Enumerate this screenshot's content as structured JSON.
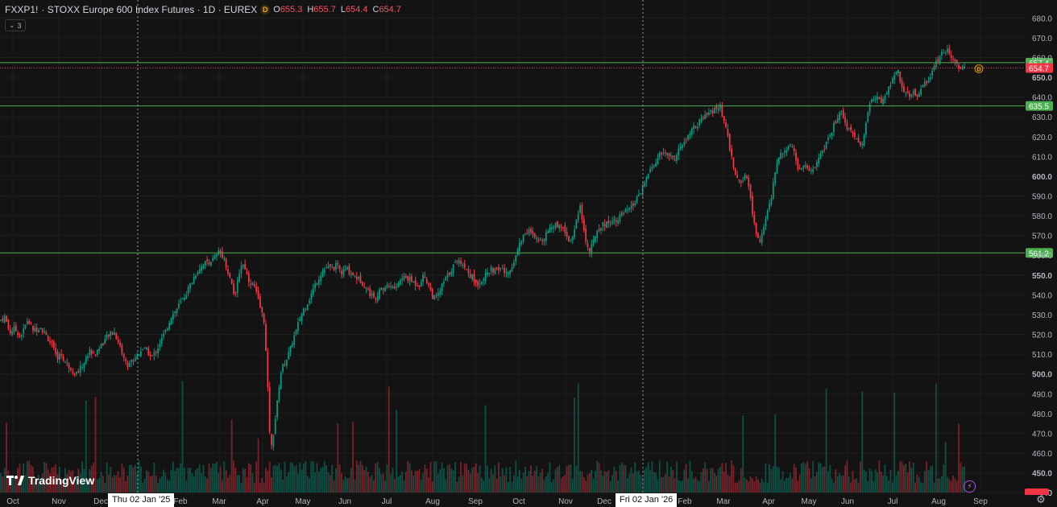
{
  "header": {
    "symbol": "FXXP1!",
    "name": "· STOXX Europe 600 Index Futures · 1D · EUREX",
    "badge": "D",
    "ohlc": {
      "o_label": "O",
      "o": "655.3",
      "h_label": "H",
      "h": "655.7",
      "l_label": "L",
      "l": "654.4",
      "c_label": "C",
      "c": "654.7"
    }
  },
  "indicator_toggle": {
    "count": "3"
  },
  "brand": {
    "name": "TradingView"
  },
  "crosshair_labels": [
    "Thu 02 Jan '25",
    "Fri 02 Jan '26"
  ],
  "colors": {
    "background": "#131313",
    "up": "#089981",
    "down": "#f23645",
    "level": "#4caf50",
    "grid": "#1e1e1e",
    "text": "#b2b5be"
  },
  "chart_data": {
    "type": "candlestick",
    "x_labels": [
      "Oct",
      "Nov",
      "Dec",
      "Feb",
      "Mar",
      "Apr",
      "May",
      "Jun",
      "Jul",
      "Aug",
      "Sep",
      "Oct",
      "Nov",
      "Dec",
      "Feb",
      "Mar",
      "Apr",
      "May",
      "Jun",
      "Jul",
      "Aug",
      "Sep"
    ],
    "y_ticks": [
      440,
      450,
      460,
      470,
      480,
      490,
      500,
      510,
      520,
      530,
      540,
      550,
      560,
      570,
      580,
      590,
      600,
      610,
      620,
      630,
      640,
      650,
      660,
      670,
      680
    ],
    "y_tick_labels": [
      "440",
      "450.0",
      "460.0",
      "470.0",
      "480.0",
      "490.0",
      "500.0",
      "510.0",
      "520.0",
      "530.0",
      "540.0",
      "550.0",
      "560.0",
      "570.0",
      "580.0",
      "590.0",
      "600.0",
      "610.0",
      "620.0",
      "630.0",
      "640.0",
      "650.0",
      "660.0",
      "670.0",
      "680.0"
    ],
    "ylim": [
      436,
      685
    ],
    "horizontal_levels": [
      {
        "value": 657.4,
        "label": "657.4"
      },
      {
        "value": 635.5,
        "label": "635.5"
      },
      {
        "value": 561.2,
        "label": "561.2"
      }
    ],
    "last_price": {
      "value": 654.7,
      "label": "654.7"
    },
    "close_path": [
      [
        0,
        527
      ],
      [
        6,
        529
      ],
      [
        12,
        521
      ],
      [
        18,
        523
      ],
      [
        26,
        519
      ],
      [
        34,
        527
      ],
      [
        42,
        522
      ],
      [
        50,
        524
      ],
      [
        58,
        519
      ],
      [
        64,
        515
      ],
      [
        70,
        508
      ],
      [
        76,
        510
      ],
      [
        82,
        505
      ],
      [
        88,
        503
      ],
      [
        94,
        500
      ],
      [
        100,
        503
      ],
      [
        106,
        507
      ],
      [
        112,
        512
      ],
      [
        118,
        510
      ],
      [
        124,
        514
      ],
      [
        130,
        517
      ],
      [
        136,
        520
      ],
      [
        142,
        521
      ],
      [
        148,
        515
      ],
      [
        154,
        508
      ],
      [
        158,
        504
      ],
      [
        164,
        507
      ],
      [
        170,
        509
      ],
      [
        176,
        513
      ],
      [
        182,
        512
      ],
      [
        188,
        508
      ],
      [
        194,
        512
      ],
      [
        200,
        517
      ],
      [
        206,
        522
      ],
      [
        212,
        529
      ],
      [
        218,
        532
      ],
      [
        224,
        536
      ],
      [
        230,
        540
      ],
      [
        236,
        545
      ],
      [
        242,
        550
      ],
      [
        248,
        554
      ],
      [
        254,
        556
      ],
      [
        260,
        557
      ],
      [
        266,
        558
      ],
      [
        272,
        562
      ],
      [
        276,
        560
      ],
      [
        280,
        556
      ],
      [
        284,
        550
      ],
      [
        288,
        545
      ],
      [
        292,
        538
      ],
      [
        296,
        550
      ],
      [
        300,
        556
      ],
      [
        304,
        554
      ],
      [
        308,
        548
      ],
      [
        312,
        546
      ],
      [
        316,
        544
      ],
      [
        320,
        538
      ],
      [
        324,
        532
      ],
      [
        328,
        527
      ],
      [
        332,
        495
      ],
      [
        336,
        460
      ],
      [
        340,
        472
      ],
      [
        344,
        485
      ],
      [
        348,
        500
      ],
      [
        352,
        505
      ],
      [
        356,
        508
      ],
      [
        360,
        512
      ],
      [
        364,
        518
      ],
      [
        368,
        522
      ],
      [
        372,
        528
      ],
      [
        376,
        532
      ],
      [
        380,
        535
      ],
      [
        384,
        538
      ],
      [
        388,
        542
      ],
      [
        392,
        546
      ],
      [
        396,
        549
      ],
      [
        400,
        552
      ],
      [
        406,
        554
      ],
      [
        412,
        553
      ],
      [
        418,
        555
      ],
      [
        424,
        551
      ],
      [
        430,
        553
      ],
      [
        436,
        551
      ],
      [
        442,
        549
      ],
      [
        448,
        547
      ],
      [
        454,
        544
      ],
      [
        460,
        540
      ],
      [
        466,
        539
      ],
      [
        472,
        542
      ],
      [
        478,
        544
      ],
      [
        484,
        545
      ],
      [
        490,
        543
      ],
      [
        496,
        547
      ],
      [
        502,
        549
      ],
      [
        508,
        548
      ],
      [
        514,
        546
      ],
      [
        520,
        545
      ],
      [
        526,
        550
      ],
      [
        532,
        545
      ],
      [
        538,
        538
      ],
      [
        544,
        540
      ],
      [
        550,
        546
      ],
      [
        556,
        550
      ],
      [
        562,
        554
      ],
      [
        568,
        558
      ],
      [
        574,
        556
      ],
      [
        580,
        552
      ],
      [
        586,
        549
      ],
      [
        592,
        545
      ],
      [
        598,
        548
      ],
      [
        604,
        550
      ],
      [
        610,
        553
      ],
      [
        616,
        552
      ],
      [
        622,
        554
      ],
      [
        628,
        550
      ],
      [
        634,
        553
      ],
      [
        640,
        560
      ],
      [
        646,
        567
      ],
      [
        652,
        572
      ],
      [
        658,
        572
      ],
      [
        664,
        568
      ],
      [
        670,
        567
      ],
      [
        676,
        570
      ],
      [
        682,
        574
      ],
      [
        688,
        575
      ],
      [
        694,
        576
      ],
      [
        700,
        573
      ],
      [
        706,
        568
      ],
      [
        712,
        570
      ],
      [
        716,
        580
      ],
      [
        720,
        585
      ],
      [
        724,
        575
      ],
      [
        728,
        565
      ],
      [
        732,
        562
      ],
      [
        736,
        566
      ],
      [
        740,
        572
      ],
      [
        746,
        575
      ],
      [
        752,
        576
      ],
      [
        758,
        577
      ],
      [
        764,
        578
      ],
      [
        770,
        580
      ],
      [
        776,
        582
      ],
      [
        782,
        583
      ],
      [
        788,
        587
      ],
      [
        794,
        590
      ],
      [
        800,
        597
      ],
      [
        806,
        602
      ],
      [
        812,
        606
      ],
      [
        818,
        610
      ],
      [
        824,
        612
      ],
      [
        830,
        611
      ],
      [
        836,
        608
      ],
      [
        842,
        613
      ],
      [
        848,
        616
      ],
      [
        854,
        620
      ],
      [
        860,
        624
      ],
      [
        866,
        626
      ],
      [
        872,
        629
      ],
      [
        878,
        631
      ],
      [
        884,
        633
      ],
      [
        890,
        634
      ],
      [
        894,
        635
      ],
      [
        898,
        628
      ],
      [
        902,
        622
      ],
      [
        906,
        614
      ],
      [
        910,
        605
      ],
      [
        914,
        600
      ],
      [
        918,
        596
      ],
      [
        922,
        598
      ],
      [
        926,
        600
      ],
      [
        930,
        594
      ],
      [
        934,
        580
      ],
      [
        938,
        572
      ],
      [
        942,
        567
      ],
      [
        946,
        570
      ],
      [
        950,
        578
      ],
      [
        954,
        585
      ],
      [
        958,
        590
      ],
      [
        962,
        603
      ],
      [
        966,
        608
      ],
      [
        970,
        612
      ],
      [
        974,
        614
      ],
      [
        978,
        615
      ],
      [
        982,
        617
      ],
      [
        986,
        612
      ],
      [
        990,
        604
      ],
      [
        994,
        603
      ],
      [
        998,
        606
      ],
      [
        1002,
        604
      ],
      [
        1006,
        602
      ],
      [
        1012,
        605
      ],
      [
        1018,
        612
      ],
      [
        1024,
        615
      ],
      [
        1030,
        620
      ],
      [
        1034,
        625
      ],
      [
        1040,
        630
      ],
      [
        1044,
        633
      ],
      [
        1048,
        628
      ],
      [
        1052,
        624
      ],
      [
        1056,
        624
      ],
      [
        1060,
        620
      ],
      [
        1066,
        616
      ],
      [
        1070,
        616
      ],
      [
        1074,
        625
      ],
      [
        1078,
        634
      ],
      [
        1082,
        640
      ],
      [
        1086,
        638
      ],
      [
        1090,
        640
      ],
      [
        1094,
        638
      ],
      [
        1098,
        641
      ],
      [
        1102,
        643
      ],
      [
        1106,
        648
      ],
      [
        1110,
        652
      ],
      [
        1114,
        654
      ],
      [
        1118,
        648
      ],
      [
        1122,
        642
      ],
      [
        1126,
        641
      ],
      [
        1130,
        640
      ],
      [
        1134,
        643
      ],
      [
        1138,
        641
      ],
      [
        1142,
        643
      ],
      [
        1146,
        646
      ],
      [
        1150,
        648
      ],
      [
        1154,
        650
      ],
      [
        1158,
        654
      ],
      [
        1162,
        658
      ],
      [
        1166,
        660
      ],
      [
        1170,
        663
      ],
      [
        1176,
        664
      ],
      [
        1182,
        660
      ],
      [
        1186,
        658
      ],
      [
        1190,
        656
      ],
      [
        1194,
        655
      ],
      [
        1198,
        654.7
      ]
    ]
  }
}
